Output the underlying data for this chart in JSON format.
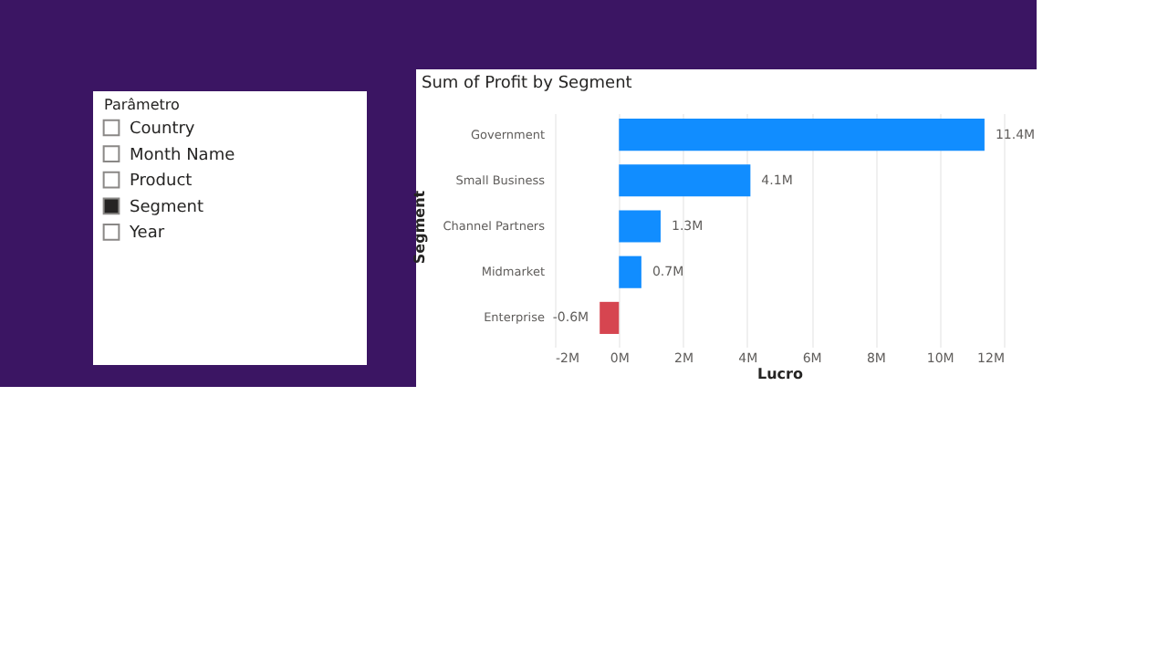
{
  "chart_data": [
    {
      "type": "other",
      "title": "Parâmetro",
      "categories": [
        "Country",
        "Month Name",
        "Product",
        "Segment",
        "Year"
      ],
      "colors": [
        "#ffffff",
        "#ffffff",
        "#ffffff",
        "#252423",
        "#ffffff"
      ]
    },
    {
      "type": "bar",
      "orientation": "horizontal",
      "title": "Sum of Profit by Segment",
      "xlabel": "Lucro",
      "ylabel": "Segment",
      "categories": [
        "Government",
        "Small Business",
        "Channel Partners",
        "Midmarket",
        "Enterprise"
      ],
      "values": [
        11.4,
        4.1,
        1.3,
        0.7,
        -0.6
      ],
      "colors": [
        "#118dff",
        "#118dff",
        "#118dff",
        "#118dff",
        "#d64550"
      ],
      "value_labels": [
        "11.4M",
        "4.1M",
        "1.3M",
        "0.7M",
        "-0.6M"
      ],
      "xlim": [
        -2,
        12
      ],
      "xticks": [
        {
          "value": -2,
          "label": "-2M"
        },
        {
          "value": 0,
          "label": "0M"
        },
        {
          "value": 2,
          "label": "2M"
        },
        {
          "value": 4,
          "label": "4M"
        },
        {
          "value": 6,
          "label": "6M"
        },
        {
          "value": 8,
          "label": "8M"
        },
        {
          "value": 10,
          "label": "10M"
        },
        {
          "value": 12,
          "label": "12M"
        }
      ],
      "grid": "x"
    }
  ]
}
